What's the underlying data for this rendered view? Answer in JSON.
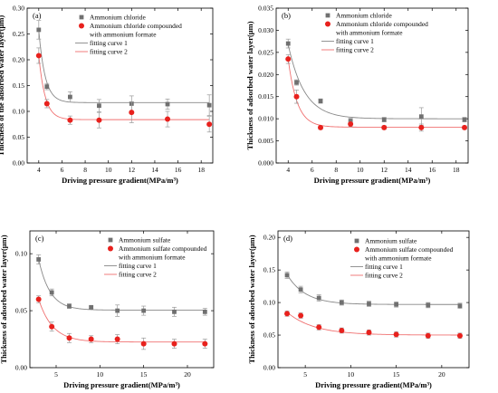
{
  "chart_data": [
    {
      "type": "scatter",
      "panel_label": "(a)",
      "xlabel": "Driving pressure gradient(MPa/m³)",
      "ylabel": "Thickness of the adsorbed water layer(μm)",
      "xlim": [
        3,
        19
      ],
      "ylim": [
        0,
        0.3
      ],
      "xticks": [
        4,
        6,
        8,
        10,
        12,
        14,
        16,
        18
      ],
      "yticks": [
        0,
        0.05,
        0.1,
        0.15,
        0.2,
        0.25,
        0.3
      ],
      "xtick_labels": [
        "4",
        "6",
        "8",
        "10",
        "12",
        "14",
        "16",
        "18"
      ],
      "ytick_labels": [
        "0.00",
        "0.05",
        "0.10",
        "0.15",
        "0.20",
        "0.25",
        "0.30"
      ],
      "legend": [
        "Ammonium chloride",
        "Ammonium chloride compounded",
        "with ammonium formate",
        "fitting curve 1",
        "fitting curve 2"
      ],
      "series": [
        {
          "x": [
            4,
            4.7,
            6.7,
            9.2,
            12,
            15.1,
            18.7
          ],
          "y": [
            0.258,
            0.148,
            0.128,
            0.111,
            0.115,
            0.114,
            0.112
          ],
          "err": [
            0.018,
            0.006,
            0.01,
            0.012,
            0.015,
            0.01,
            0.02
          ],
          "color": "#707070",
          "marker": "square"
        },
        {
          "x": [
            4,
            4.7,
            6.7,
            9.2,
            12,
            15.1,
            18.7
          ],
          "y": [
            0.208,
            0.115,
            0.083,
            0.083,
            0.098,
            0.085,
            0.075
          ],
          "err": [
            0.015,
            0.008,
            0.008,
            0.015,
            0.02,
            0.015,
            0.015
          ],
          "color": "#e8211d",
          "marker": "circle"
        }
      ],
      "fits": [
        {
          "y0": 0.117,
          "A": 0.14,
          "x0": 4,
          "t": 0.55,
          "color": "#888888"
        },
        {
          "y0": 0.084,
          "A": 0.124,
          "x0": 4,
          "t": 0.55,
          "color": "#f07070"
        }
      ]
    },
    {
      "type": "scatter",
      "panel_label": "(b)",
      "xlabel": "Driving pressure gradient(MPa/m³)",
      "ylabel": "Thickness of adsorbed water layer(μm)",
      "xlim": [
        3,
        19
      ],
      "ylim": [
        0,
        0.035
      ],
      "xticks": [
        4,
        6,
        8,
        10,
        12,
        14,
        16,
        18
      ],
      "yticks": [
        0,
        0.005,
        0.01,
        0.015,
        0.02,
        0.025,
        0.03,
        0.035
      ],
      "xtick_labels": [
        "4",
        "6",
        "8",
        "10",
        "12",
        "14",
        "16",
        "18"
      ],
      "ytick_labels": [
        "0.000",
        "0.005",
        "0.010",
        "0.015",
        "0.020",
        "0.025",
        "0.030",
        "0.035"
      ],
      "legend": [
        "Ammonium chloride",
        "Ammonium chloride compounded",
        "with ammonium formate",
        "fitting curve 1",
        "fitting curve 2"
      ],
      "series": [
        {
          "x": [
            4,
            4.7,
            6.7,
            9.2,
            12,
            15.1,
            18.7
          ],
          "y": [
            0.027,
            0.0182,
            0.014,
            0.0095,
            0.0098,
            0.0105,
            0.0098
          ],
          "err": [
            0.001,
            0.0006,
            0.0005,
            0.0006,
            0.0005,
            0.002,
            0.0005
          ],
          "color": "#707070",
          "marker": "square"
        },
        {
          "x": [
            4,
            4.7,
            6.7,
            9.2,
            12,
            15.1,
            18.7
          ],
          "y": [
            0.0235,
            0.015,
            0.008,
            0.0088,
            0.008,
            0.008,
            0.008
          ],
          "err": [
            0.001,
            0.0015,
            0.0004,
            0.0006,
            0.0004,
            0.0008,
            0.0004
          ],
          "color": "#e8211d",
          "marker": "circle"
        }
      ],
      "fits": [
        {
          "y0": 0.01,
          "A": 0.0168,
          "x0": 4,
          "t": 1.35,
          "color": "#888888"
        },
        {
          "y0": 0.0081,
          "A": 0.0154,
          "x0": 4,
          "t": 0.75,
          "color": "#f07070"
        }
      ]
    },
    {
      "type": "scatter",
      "panel_label": "(c)",
      "xlabel": "Driving pressure gradient(MPa/m³)",
      "ylabel": "Thickness of adsorbed water layer(μm)",
      "xlim": [
        2,
        23
      ],
      "ylim": [
        0,
        0.12
      ],
      "xticks": [
        5,
        10,
        15,
        20
      ],
      "yticks": [
        0,
        0.05,
        0.1
      ],
      "xtick_labels": [
        "5",
        "10",
        "15",
        "20"
      ],
      "ytick_labels": [
        "0.00",
        "0.05",
        "0.10"
      ],
      "legend": [
        "Ammonium sulfate",
        "Ammonium sulfate compounded",
        "with ammonium formate",
        "fitting curve 1",
        "fitting curve 2"
      ],
      "series": [
        {
          "x": [
            3,
            4.5,
            6.5,
            9,
            12,
            15,
            18.5,
            22
          ],
          "y": [
            0.095,
            0.066,
            0.054,
            0.053,
            0.05,
            0.05,
            0.049,
            0.049
          ],
          "err": [
            0.004,
            0.003,
            0.002,
            0.001,
            0.005,
            0.004,
            0.004,
            0.003
          ],
          "color": "#707070",
          "marker": "square"
        },
        {
          "x": [
            3,
            4.5,
            6.5,
            9,
            12,
            15,
            18.5,
            22
          ],
          "y": [
            0.06,
            0.036,
            0.026,
            0.025,
            0.025,
            0.021,
            0.021,
            0.021
          ],
          "err": [
            0.003,
            0.004,
            0.004,
            0.003,
            0.004,
            0.005,
            0.004,
            0.004
          ],
          "color": "#e8211d",
          "marker": "circle"
        }
      ],
      "fits": [
        {
          "y0": 0.0505,
          "A": 0.0445,
          "x0": 3,
          "t": 1.3,
          "color": "#888888"
        },
        {
          "y0": 0.0225,
          "A": 0.0375,
          "x0": 3,
          "t": 1.6,
          "color": "#f07070"
        }
      ]
    },
    {
      "type": "scatter",
      "panel_label": "(d)",
      "xlabel": "Driving pressure gradient(MPa/m³)",
      "ylabel": "Thickness of adsorbed water layer(μm)",
      "xlim": [
        2,
        23
      ],
      "ylim": [
        0,
        0.21
      ],
      "xticks": [
        5,
        10,
        15,
        20
      ],
      "yticks": [
        0,
        0.05,
        0.1,
        0.15,
        0.2
      ],
      "xtick_labels": [
        "5",
        "10",
        "15",
        "20"
      ],
      "ytick_labels": [
        "0.00",
        "0.05",
        "0.10",
        "0.15",
        "0.20"
      ],
      "legend": [
        "Ammonium sulfate",
        "Ammonium sulfate compounded",
        "with ammonium formate",
        "fitting curve 1",
        "fitting curve 2"
      ],
      "series": [
        {
          "x": [
            3,
            4.5,
            6.5,
            9,
            12,
            15,
            18.5,
            22
          ],
          "y": [
            0.142,
            0.12,
            0.107,
            0.1,
            0.098,
            0.097,
            0.096,
            0.095
          ],
          "err": [
            0.005,
            0.005,
            0.005,
            0.004,
            0.004,
            0.004,
            0.004,
            0.004
          ],
          "color": "#707070",
          "marker": "square"
        },
        {
          "x": [
            3,
            4.5,
            6.5,
            9,
            12,
            15,
            18.5,
            22
          ],
          "y": [
            0.083,
            0.08,
            0.062,
            0.057,
            0.054,
            0.051,
            0.049,
            0.049
          ],
          "err": [
            0.004,
            0.004,
            0.004,
            0.004,
            0.004,
            0.004,
            0.004,
            0.004
          ],
          "color": "#e8211d",
          "marker": "circle"
        }
      ],
      "fits": [
        {
          "y0": 0.097,
          "A": 0.046,
          "x0": 3,
          "t": 2.0,
          "color": "#888888"
        },
        {
          "y0": 0.05,
          "A": 0.035,
          "x0": 3,
          "t": 3.0,
          "color": "#f07070"
        }
      ]
    }
  ]
}
